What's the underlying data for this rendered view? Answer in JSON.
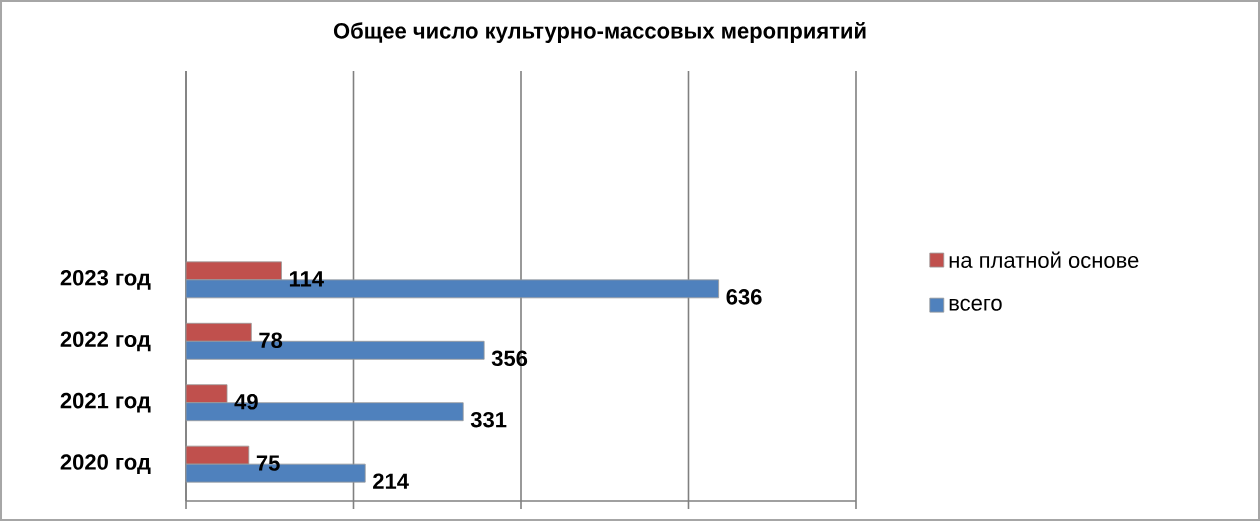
{
  "chart_data": {
    "type": "bar",
    "orientation": "horizontal",
    "title": "Общее число культурно-массовых мероприятий",
    "categories": [
      "2023 год",
      "2022 год",
      "2021 год",
      "2020 год"
    ],
    "series": [
      {
        "name": "на платной основе",
        "color": "#c0504d",
        "values": [
          114,
          78,
          49,
          75
        ]
      },
      {
        "name": "всего",
        "color": "#4f81bd",
        "values": [
          636,
          356,
          331,
          214
        ]
      }
    ],
    "xlim": [
      0,
      800
    ],
    "xticks": [
      {
        "value": 0,
        "label": null
      },
      {
        "value": 200,
        "label": null
      },
      {
        "value": 400,
        "label": null
      },
      {
        "value": 600,
        "label": null
      },
      {
        "value": 800,
        "label": null
      }
    ],
    "tick_labels": "y",
    "grid": "x",
    "legend": "right",
    "data_labels": true
  }
}
